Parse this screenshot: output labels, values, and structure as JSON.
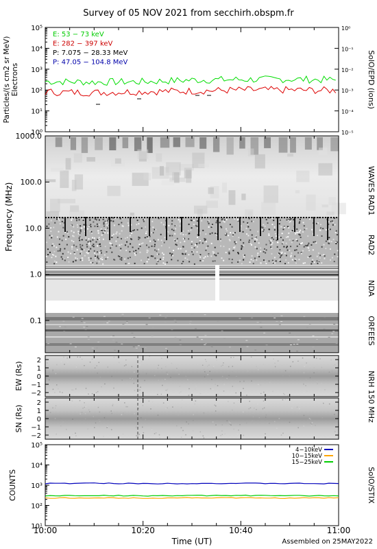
{
  "title": "Survey of 05 NOV 2021 from secchirh.obspm.fr",
  "footer": "Assembled on 25MAY2022",
  "xaxis": {
    "label": "Time (UT)",
    "ticks": [
      "10:00",
      "10:20",
      "10:40",
      "11:00"
    ],
    "range": [
      "10:00",
      "11:00"
    ]
  },
  "colors": {
    "green": "#00dd00",
    "red": "#dd0000",
    "blue": "#0000bb",
    "orange": "#ffa500",
    "yellow": "#c8c800"
  },
  "chart_data": [
    {
      "type": "line",
      "panel": "epd",
      "ylabel": "Particles/(s cm2 sr MeV)",
      "ylabel2": "Electrons",
      "right_label": "SolO/EPD (ions)",
      "scale": "log",
      "ylim": [
        1,
        100000
      ],
      "yticks": [
        "10⁰",
        "10¹",
        "10²",
        "10³",
        "10⁴",
        "10⁵"
      ],
      "y2lim": [
        1e-05,
        1
      ],
      "y2ticks": [
        "10⁻⁵",
        "10⁻⁴",
        "10⁻³",
        "10⁻²",
        "10⁻¹",
        "10⁰"
      ],
      "legend": [
        "E: 53 − 73 keV",
        "E: 282 − 397 keV",
        "P: 7.075 − 28.33 MeV",
        "P: 47.05 − 104.8 MeV"
      ],
      "legend_colors": [
        "#00cc00",
        "#cc0000",
        "#000000",
        "#0000aa"
      ],
      "series": [
        {
          "name": "E: 53 − 73 keV",
          "color": "#00dd00",
          "x": [
            "10:00",
            "10:10",
            "10:20",
            "10:30",
            "10:40",
            "10:50",
            "11:00"
          ],
          "values": [
            260,
            240,
            250,
            300,
            320,
            330,
            300
          ]
        },
        {
          "name": "E: 282 − 397 keV",
          "color": "#dd0000",
          "x": [
            "10:00",
            "10:10",
            "10:20",
            "10:30",
            "10:40",
            "10:50",
            "11:00"
          ],
          "values": [
            80,
            75,
            85,
            90,
            100,
            100,
            95
          ]
        }
      ]
    },
    {
      "type": "heatmap",
      "panel": "spectrum",
      "ylabel": "Frequency (MHz)",
      "scale": "log",
      "ylim": [
        0.02,
        1000
      ],
      "yticks": [
        "0.1",
        "1.0",
        "10.0",
        "100.0",
        "1000.0"
      ],
      "instruments": [
        "WAVES RAD1",
        "RAD2",
        "NDA",
        "ORFEES"
      ]
    },
    {
      "type": "heatmap",
      "panel": "nrh",
      "instrument": "NRH 150 MHz",
      "subpanels": [
        {
          "ylabel": "EW (Rs)",
          "yticks": [
            "2",
            "1",
            "0",
            "−1",
            "−2"
          ]
        },
        {
          "ylabel": "SN (Rs)",
          "yticks": [
            "2",
            "1",
            "0",
            "−1",
            "−2"
          ]
        }
      ],
      "ylim": [
        -2.5,
        2.5
      ]
    },
    {
      "type": "line",
      "panel": "stix",
      "ylabel": "COUNTS",
      "right_label": "SolO/STIX",
      "scale": "log",
      "ylim": [
        10,
        100000
      ],
      "yticks": [
        "10¹",
        "10²",
        "10³",
        "10⁴",
        "10⁵"
      ],
      "series": [
        {
          "name": "4−10keV",
          "color": "#0000bb",
          "x": [
            "10:00",
            "10:10",
            "10:20",
            "10:30",
            "10:40",
            "10:50",
            "11:00"
          ],
          "values": [
            1200,
            1250,
            1200,
            1220,
            1230,
            1210,
            1200
          ]
        },
        {
          "name": "10−15keV",
          "color": "#ffa500",
          "x": [
            "10:00",
            "10:10",
            "10:20",
            "10:30",
            "10:40",
            "10:50",
            "11:00"
          ],
          "values": [
            230,
            235,
            230,
            240,
            235,
            230,
            235
          ]
        },
        {
          "name": "15−25keV",
          "color": "#00cc00",
          "x": [
            "10:00",
            "10:10",
            "10:20",
            "10:30",
            "10:40",
            "10:50",
            "11:00"
          ],
          "values": [
            300,
            310,
            300,
            305,
            310,
            300,
            305
          ]
        }
      ]
    }
  ]
}
